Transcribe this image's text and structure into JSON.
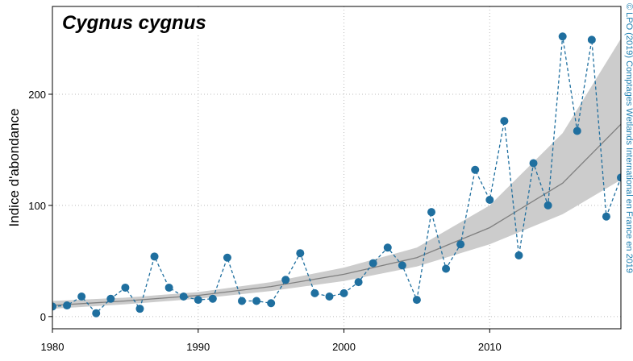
{
  "chart_data": {
    "type": "line",
    "title": "Cygnus cygnus",
    "ylabel": "Indice d'abondance",
    "credit": "© LPO (2019) Comptages Wetlands International en France en 2019",
    "x": [
      1980,
      1981,
      1982,
      1983,
      1984,
      1985,
      1986,
      1987,
      1988,
      1989,
      1990,
      1991,
      1992,
      1993,
      1994,
      1995,
      1996,
      1997,
      1998,
      1999,
      2000,
      2001,
      2002,
      2003,
      2004,
      2005,
      2006,
      2007,
      2008,
      2009,
      2010,
      2011,
      2012,
      2013,
      2014,
      2015,
      2016,
      2017,
      2018,
      2019
    ],
    "series": [
      {
        "color": "#1f6f9f",
        "values": [
          9,
          10,
          18,
          3,
          16,
          26,
          7,
          54,
          26,
          18,
          15,
          16,
          53,
          14,
          14,
          12,
          33,
          57,
          21,
          18,
          21,
          31,
          48,
          62,
          46,
          15,
          94,
          43,
          65,
          132,
          105,
          176,
          55,
          138,
          100,
          252,
          167,
          249,
          90,
          125
        ]
      }
    ],
    "trend": {
      "color": "#808080",
      "band_color": "#cccccc",
      "x": [
        1980,
        1985,
        1990,
        1995,
        2000,
        2005,
        2010,
        2015,
        2019
      ],
      "values": [
        10,
        14,
        19,
        27,
        38,
        53,
        80,
        120,
        173
      ],
      "lower": [
        7,
        11,
        16,
        23,
        32,
        45,
        65,
        92,
        123
      ],
      "upper": [
        14,
        17,
        22,
        31,
        44,
        62,
        100,
        165,
        250
      ]
    },
    "xlim": [
      1980,
      2019
    ],
    "ylim": [
      -11,
      279
    ],
    "xticks": [
      1980,
      1990,
      2000,
      2010
    ],
    "yticks": [
      0,
      100,
      200
    ],
    "grid": true
  }
}
